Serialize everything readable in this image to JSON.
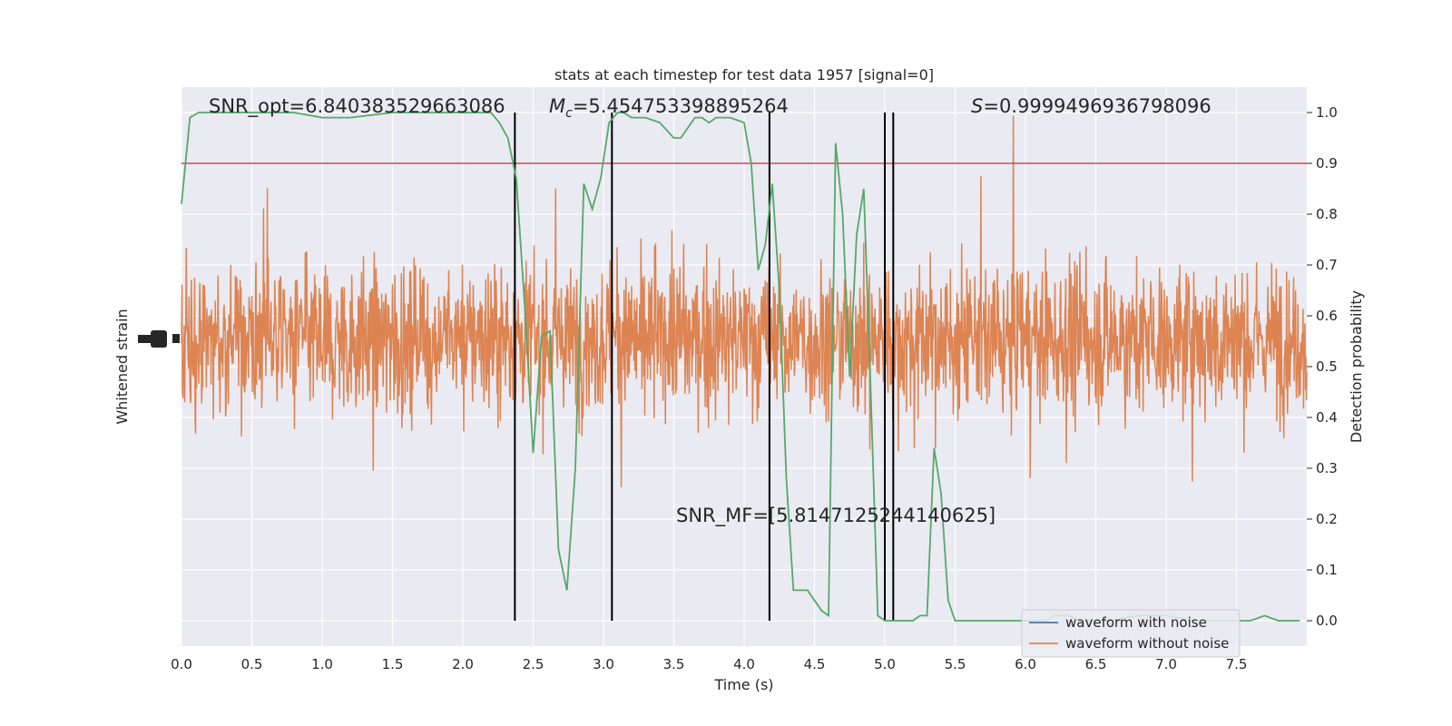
{
  "chart_data": {
    "type": "line",
    "title": "stats at each timestep for test data 1957 [signal=0]",
    "xlabel": "Time (s)",
    "ylabel_left": "Whitened strain",
    "ylabel_right": "Detection probability",
    "xlim": [
      0,
      8
    ],
    "ylim_right": [
      -0.05,
      1.05
    ],
    "x_ticks": [
      "0.0",
      "0.5",
      "1.0",
      "1.5",
      "2.0",
      "2.5",
      "3.0",
      "3.5",
      "4.0",
      "4.5",
      "5.0",
      "5.5",
      "6.0",
      "6.5",
      "7.0",
      "7.5"
    ],
    "y_right_ticks": [
      "0.0",
      "0.1",
      "0.2",
      "0.3",
      "0.4",
      "0.5",
      "0.6",
      "0.7",
      "0.8",
      "0.9",
      "1.0"
    ],
    "annotations": {
      "snr_opt": "SNR_opt=6.840383529663086",
      "mc_symbol": "M",
      "mc_sub": "c",
      "mc_value": "=5.454753398895264",
      "s_symbol": "S",
      "s_value": "=0.9999496936798096",
      "snr_mf": "SNR_MF=[5.8147125244140625]"
    },
    "threshold": 0.9,
    "threshold_color": "#c44e52",
    "vertical_lines": [
      2.37,
      3.06,
      4.18,
      5.0,
      5.06
    ],
    "legend": {
      "location": "lower-right",
      "entries": [
        {
          "label": "waveform with noise",
          "color": "#4c72b0"
        },
        {
          "label": "waveform without noise",
          "color": "#dd8452"
        }
      ]
    },
    "strain_color": "#dd8452",
    "probability_color": "#55a868",
    "probability": {
      "x": [
        0.0,
        0.06,
        0.12,
        0.18,
        0.3,
        0.5,
        0.8,
        1.0,
        1.2,
        1.5,
        1.8,
        2.0,
        2.1,
        2.2,
        2.26,
        2.32,
        2.38,
        2.44,
        2.5,
        2.56,
        2.62,
        2.68,
        2.74,
        2.8,
        2.86,
        2.92,
        2.98,
        3.04,
        3.1,
        3.14,
        3.2,
        3.3,
        3.4,
        3.5,
        3.55,
        3.6,
        3.65,
        3.7,
        3.75,
        3.8,
        3.85,
        3.9,
        4.0,
        4.05,
        4.1,
        4.15,
        4.2,
        4.25,
        4.3,
        4.35,
        4.4,
        4.45,
        4.5,
        4.55,
        4.6,
        4.65,
        4.7,
        4.75,
        4.8,
        4.85,
        4.9,
        4.95,
        5.0,
        5.05,
        5.1,
        5.15,
        5.2,
        5.25,
        5.3,
        5.35,
        5.4,
        5.45,
        5.5,
        5.6,
        5.8,
        6.0,
        6.05,
        6.1,
        6.15,
        6.2,
        6.25,
        6.3,
        6.4,
        6.6,
        6.8,
        7.0,
        7.2,
        7.4,
        7.6,
        7.7,
        7.8,
        7.9,
        7.95
      ],
      "y": [
        0.82,
        0.99,
        1.0,
        1.0,
        1.0,
        1.0,
        1.0,
        0.99,
        0.99,
        1.0,
        1.0,
        1.0,
        1.0,
        1.0,
        0.98,
        0.95,
        0.87,
        0.62,
        0.33,
        0.56,
        0.57,
        0.14,
        0.06,
        0.3,
        0.86,
        0.81,
        0.87,
        0.98,
        1.0,
        1.0,
        0.99,
        0.99,
        0.98,
        0.95,
        0.95,
        0.97,
        0.99,
        0.99,
        0.98,
        0.99,
        0.99,
        0.99,
        0.98,
        0.9,
        0.69,
        0.74,
        0.86,
        0.65,
        0.28,
        0.06,
        0.06,
        0.06,
        0.04,
        0.02,
        0.01,
        0.94,
        0.8,
        0.48,
        0.76,
        0.85,
        0.45,
        0.01,
        0.0,
        0.0,
        0.0,
        0.0,
        0.0,
        0.01,
        0.01,
        0.34,
        0.25,
        0.04,
        0.0,
        0.0,
        0.0,
        0.0,
        0.0,
        0.0,
        0.0,
        0.01,
        0.01,
        0.01,
        0.0,
        0.0,
        0.01,
        0.01,
        0.0,
        0.0,
        0.0,
        0.01,
        0.0,
        0.0,
        0.0
      ]
    }
  }
}
